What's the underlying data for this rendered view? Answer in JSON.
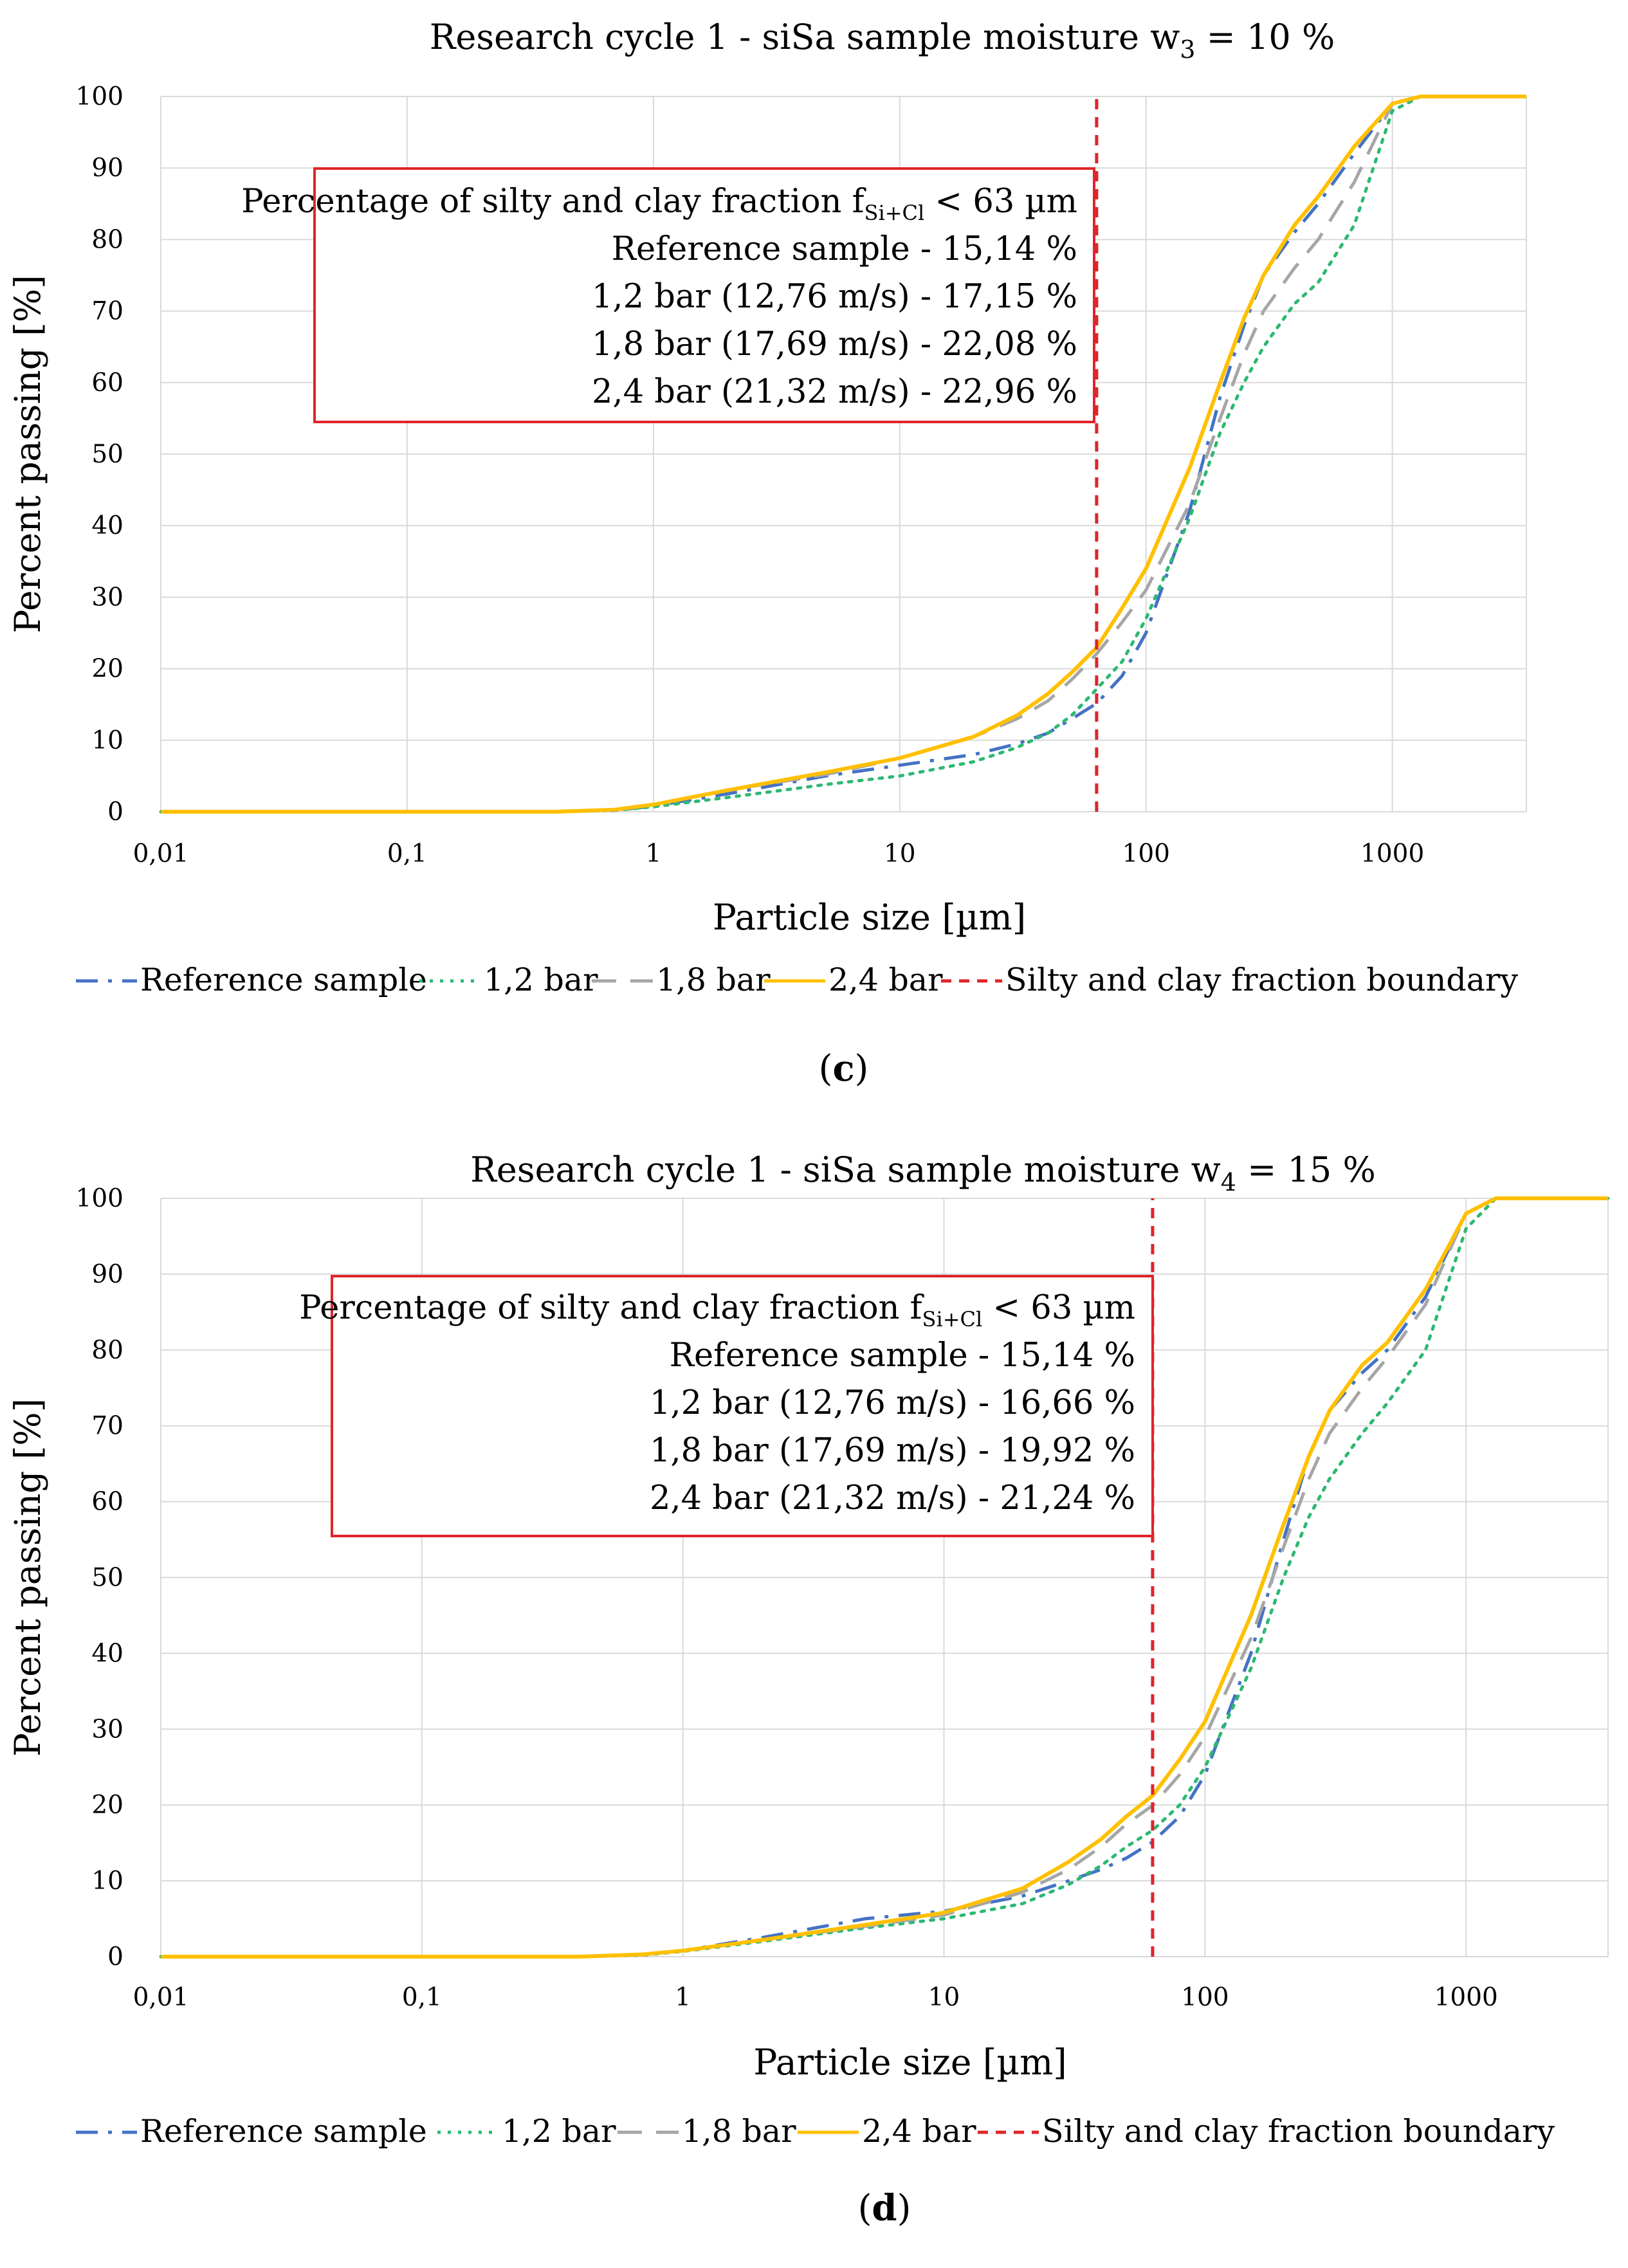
{
  "chart_data": [
    {
      "type": "line",
      "panel_label": "(c)",
      "panel_letter": "c",
      "title": "Research cycle 1 - siSa sample moisture w",
      "title_subscript": "3",
      "title_suffix": " = 10 %",
      "xlabel": "Particle size [µm]",
      "ylabel": "Percent passing [%]",
      "x_scale": "log",
      "xlim": [
        0.01,
        3500
      ],
      "ylim": [
        0,
        100
      ],
      "x_ticks": [
        0.01,
        0.1,
        1,
        10,
        100,
        1000
      ],
      "x_tick_labels": [
        "0,01",
        "0,1",
        "1",
        "10",
        "100",
        "1000"
      ],
      "y_ticks": [
        0,
        10,
        20,
        30,
        40,
        50,
        60,
        70,
        80,
        90,
        100
      ],
      "y_tick_labels": [
        "0",
        "10",
        "20",
        "30",
        "40",
        "50",
        "60",
        "70",
        "80",
        "90",
        "100"
      ],
      "grid": true,
      "boundary": {
        "name": "Silty and clay fraction boundary",
        "x": 63,
        "color": "#e0242a"
      },
      "annotation": {
        "heading_prefix": "Percentage of silty and clay fraction f",
        "heading_sub": "Si+Cl",
        "heading_suffix": " < 63 µm",
        "lines": [
          "Reference sample - 15,14 %",
          "1,2 bar (12,76 m/s) - 17,15 %",
          "1,8 bar (17,69 m/s) - 22,08 %",
          "2,4 bar (21,32 m/s) - 22,96 %"
        ]
      },
      "series": [
        {
          "name": "Reference sample",
          "color": "#4472c4",
          "style": "dashdot",
          "x": [
            0.01,
            0.4,
            0.7,
            1,
            2,
            5,
            10,
            20,
            30,
            40,
            50,
            63,
            80,
            100,
            150,
            200,
            250,
            300,
            400,
            500,
            700,
            1000,
            1300,
            3500
          ],
          "y": [
            0,
            0,
            0.2,
            0.8,
            2.5,
            5,
            6.5,
            8,
            9.5,
            11,
            13,
            15.14,
            19,
            25,
            42,
            58,
            68,
            75,
            81,
            85,
            92,
            99,
            100,
            100
          ]
        },
        {
          "name": "1,2 bar",
          "color": "#2eb872",
          "style": "dotted",
          "x": [
            0.01,
            0.4,
            0.7,
            1,
            2,
            5,
            10,
            20,
            30,
            40,
            50,
            63,
            80,
            100,
            150,
            200,
            250,
            300,
            400,
            500,
            700,
            1000,
            1300,
            3500
          ],
          "y": [
            0,
            0,
            0.2,
            0.7,
            2,
            3.8,
            5,
            7,
            9,
            11,
            13.5,
            17.15,
            21,
            27,
            41,
            53,
            60,
            65,
            71,
            74,
            82,
            98,
            100,
            100
          ]
        },
        {
          "name": "1,8 bar",
          "color": "#a6a6a6",
          "style": "dashed",
          "x": [
            0.01,
            0.4,
            0.7,
            1,
            2,
            5,
            10,
            20,
            30,
            40,
            50,
            63,
            80,
            100,
            150,
            200,
            250,
            300,
            400,
            500,
            700,
            1000,
            1300,
            3500
          ],
          "y": [
            0,
            0,
            0.3,
            1,
            3,
            5.2,
            7.5,
            10.5,
            13,
            15.5,
            18.5,
            22.08,
            26.5,
            31,
            43,
            55,
            64,
            70,
            76,
            80,
            88,
            99,
            100,
            100
          ]
        },
        {
          "name": "2,4 bar",
          "color": "#ffc000",
          "style": "solid",
          "x": [
            0.01,
            0.4,
            0.7,
            1,
            2,
            5,
            10,
            20,
            30,
            40,
            50,
            63,
            80,
            100,
            150,
            200,
            250,
            300,
            400,
            500,
            700,
            1000,
            1300,
            3500
          ],
          "y": [
            0,
            0,
            0.3,
            1,
            3,
            5.5,
            7.5,
            10.5,
            13.5,
            16.5,
            19.5,
            22.96,
            28.5,
            34,
            48,
            60,
            69,
            75,
            82,
            86,
            93,
            99,
            100,
            100
          ]
        }
      ]
    },
    {
      "type": "line",
      "panel_label": "(d)",
      "panel_letter": "d",
      "title": "Research cycle 1 - siSa sample moisture w",
      "title_subscript": "4",
      "title_suffix": " = 15 %",
      "xlabel": "Particle size [µm]",
      "ylabel": "Percent passing [%]",
      "x_scale": "log",
      "xlim": [
        0.01,
        3500
      ],
      "ylim": [
        0,
        100
      ],
      "x_ticks": [
        0.01,
        0.1,
        1,
        10,
        100,
        1000
      ],
      "x_tick_labels": [
        "0,01",
        "0,1",
        "1",
        "10",
        "100",
        "1000"
      ],
      "y_ticks": [
        0,
        10,
        20,
        30,
        40,
        50,
        60,
        70,
        80,
        90,
        100
      ],
      "y_tick_labels": [
        "0",
        "10",
        "20",
        "30",
        "40",
        "50",
        "60",
        "70",
        "80",
        "90",
        "100"
      ],
      "grid": true,
      "boundary": {
        "name": "Silty and clay fraction boundary",
        "x": 63,
        "color": "#e0242a"
      },
      "annotation": {
        "heading_prefix": "Percentage of silty and clay fraction f",
        "heading_sub": "Si+Cl",
        "heading_suffix": " < 63 µm",
        "lines": [
          "Reference sample - 15,14 %",
          "1,2 bar (12,76 m/s) - 16,66 %",
          "1,8 bar (17,69 m/s) - 19,92 %",
          "2,4 bar (21,32 m/s) - 21,24 %"
        ]
      },
      "series": [
        {
          "name": "Reference sample",
          "color": "#4472c4",
          "style": "dashdot",
          "x": [
            0.01,
            0.4,
            0.7,
            1,
            2,
            5,
            10,
            20,
            30,
            40,
            50,
            63,
            80,
            100,
            150,
            200,
            250,
            300,
            400,
            500,
            700,
            1000,
            1300,
            3500
          ],
          "y": [
            0,
            0,
            0.3,
            0.8,
            2.5,
            5,
            6,
            8,
            10,
            11.5,
            13,
            15.14,
            18.5,
            24,
            40,
            55,
            66,
            72,
            77,
            80,
            87,
            98,
            100,
            100
          ]
        },
        {
          "name": "1,2 bar",
          "color": "#2eb872",
          "style": "dotted",
          "x": [
            0.01,
            0.4,
            0.7,
            1,
            2,
            5,
            10,
            20,
            30,
            40,
            50,
            63,
            80,
            100,
            150,
            200,
            250,
            300,
            400,
            500,
            700,
            1000,
            1300,
            3500
          ],
          "y": [
            0,
            0,
            0.2,
            0.7,
            2,
            3.8,
            5,
            7,
            9.5,
            12,
            14.5,
            16.66,
            20,
            25,
            38,
            50,
            58,
            63,
            69,
            73,
            80,
            96,
            100,
            100
          ]
        },
        {
          "name": "1,8 bar",
          "color": "#a6a6a6",
          "style": "dashed",
          "x": [
            0.01,
            0.4,
            0.7,
            1,
            2,
            5,
            10,
            20,
            30,
            40,
            50,
            63,
            80,
            100,
            150,
            200,
            250,
            300,
            400,
            500,
            700,
            1000,
            1300,
            3500
          ],
          "y": [
            0,
            0,
            0.3,
            0.8,
            2.2,
            4,
            5.5,
            8.5,
            11.5,
            14.5,
            17.5,
            19.92,
            24,
            29,
            42,
            54,
            63,
            69,
            75,
            79,
            86,
            98,
            100,
            100
          ]
        },
        {
          "name": "2,4 bar",
          "color": "#ffc000",
          "style": "solid",
          "x": [
            0.01,
            0.4,
            0.7,
            1,
            2,
            5,
            10,
            20,
            30,
            40,
            50,
            63,
            80,
            100,
            150,
            200,
            250,
            300,
            400,
            500,
            700,
            1000,
            1300,
            3500
          ],
          "y": [
            0,
            0,
            0.3,
            0.8,
            2.2,
            4.2,
            5.8,
            9,
            12.5,
            15.5,
            18.5,
            21.24,
            26,
            31,
            45,
            57,
            66,
            72,
            78,
            81,
            88,
            98,
            100,
            100
          ]
        }
      ]
    }
  ]
}
